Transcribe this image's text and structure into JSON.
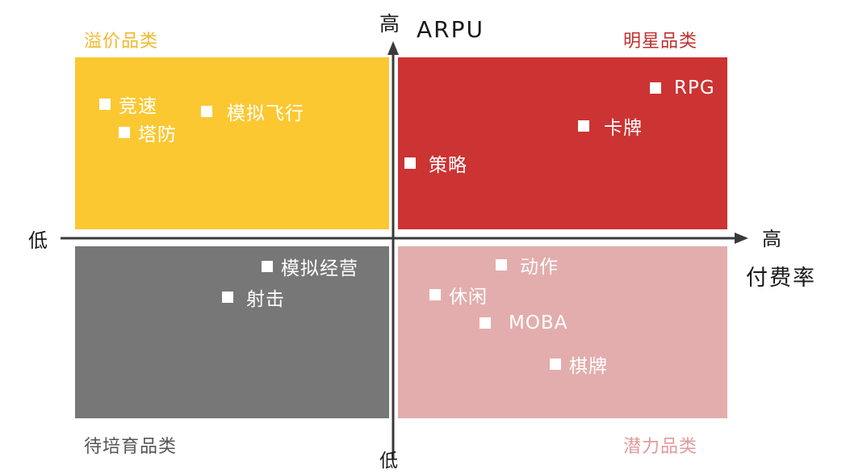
{
  "axes": {
    "y": {
      "title": "ARPU",
      "high": "高",
      "low": "低"
    },
    "x": {
      "title": "付费率",
      "high": "高",
      "low": "低"
    }
  },
  "colors": {
    "premium": "#fbc832",
    "star": "#cc3333",
    "nurture": "#777777",
    "potential": "#e3adad",
    "premium_label": "#f2b92a",
    "star_label": "#c0302e",
    "nurture_label": "#555555",
    "potential_label": "#e39a9a",
    "axis": "#3a3a3a"
  },
  "quadrants": {
    "premium": {
      "label": "溢价品类",
      "items": [
        "竞速",
        "塔防",
        "模拟飞行"
      ]
    },
    "star": {
      "label": "明星品类",
      "items": [
        "RPG",
        "卡牌",
        "策略"
      ]
    },
    "nurture": {
      "label": "待培育品类",
      "items": [
        "模拟经营",
        "射击"
      ]
    },
    "potential": {
      "label": "潜力品类",
      "items": [
        "动作",
        "休闲",
        "MOBA",
        "棋牌"
      ]
    }
  }
}
